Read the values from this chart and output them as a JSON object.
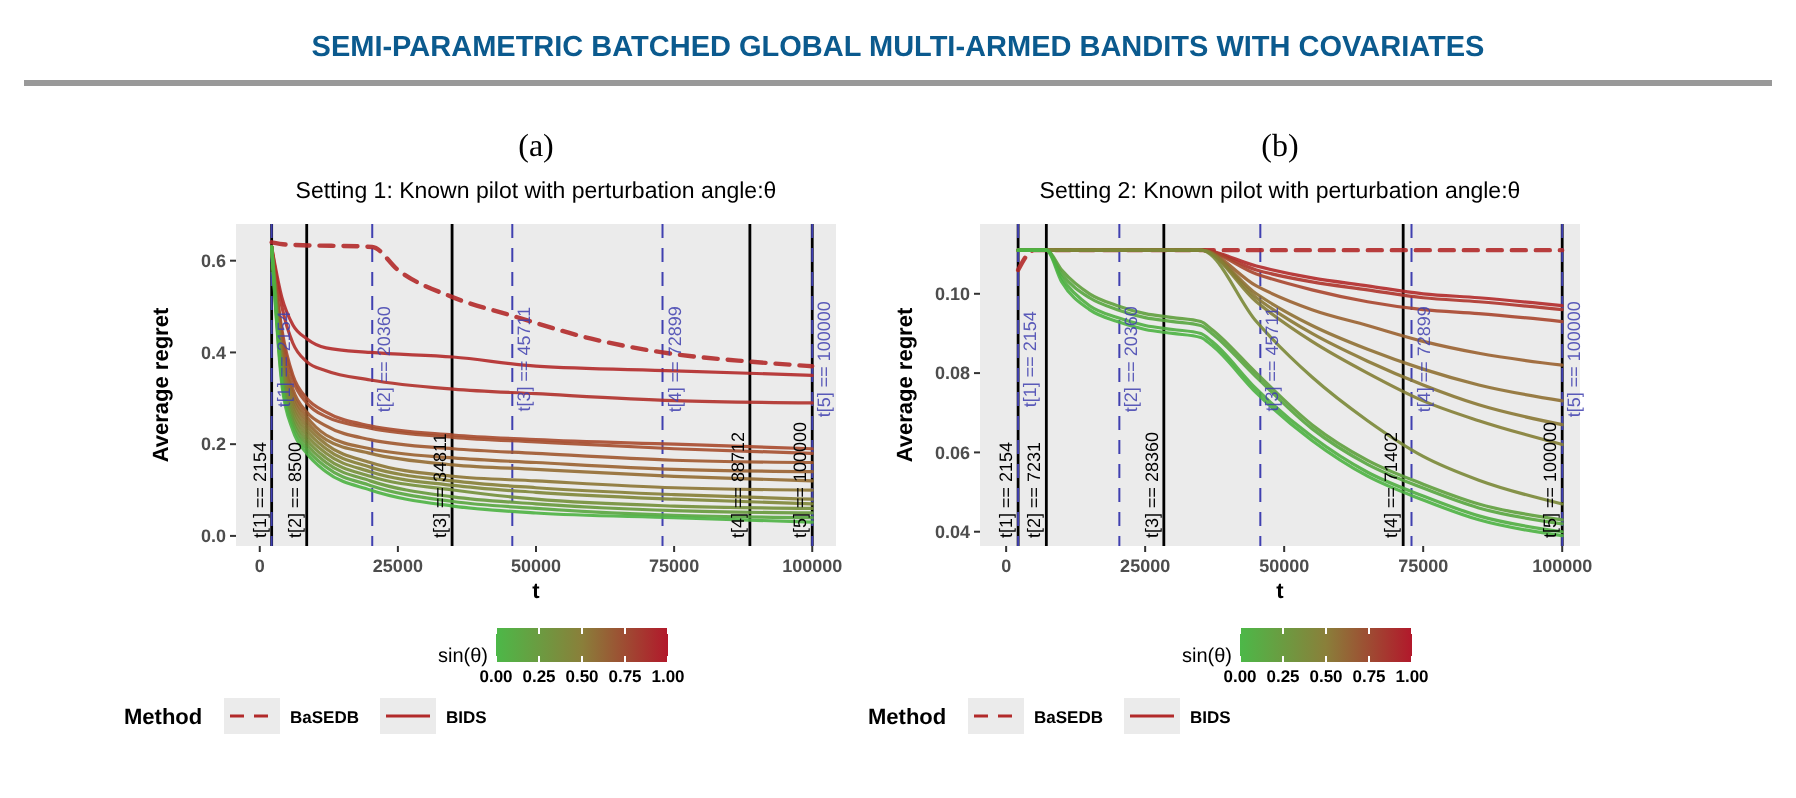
{
  "chart_data": [
    {
      "type": "line",
      "title": "Setting 1: Known pilot with perturbation angle:θ",
      "xlabel": "t",
      "ylabel": "Average regret",
      "legend_title": "Method",
      "clabel": "sin(θ)",
      "clim": [
        0,
        1
      ],
      "cticks": [
        {
          "value": 0,
          "label": "0.00"
        },
        {
          "value": 0.25,
          "label": "0.25"
        },
        {
          "value": 0.5,
          "label": "0.50"
        },
        {
          "value": 0.75,
          "label": "0.75"
        },
        {
          "value": 1,
          "label": "1.00"
        }
      ],
      "legend": "bottom",
      "grid": false,
      "annotations": [
        "SEMI-PARAMETRIC BATCHED GLOBAL MULTI-ARMED BANDITS WITH COVARIATES",
        "(a)"
      ],
      "xlim": [
        -4300,
        104300
      ],
      "ylim": [
        -0.022,
        0.68
      ],
      "xticks": [
        0,
        25000,
        50000,
        75000,
        100000
      ],
      "yticks": [
        {
          "value": 0,
          "label": "0.0"
        },
        {
          "value": 0.2,
          "label": "0.2"
        },
        {
          "value": 0.4,
          "label": "0.4"
        },
        {
          "value": 0.6,
          "label": "0.6"
        }
      ],
      "ref_lines": [
        {
          "axis": "x",
          "value": 2154,
          "label": "t[1] == 2154",
          "color": "#000000",
          "line_style": "solid"
        },
        {
          "axis": "x",
          "value": 8500,
          "label": "t[2] == 8500",
          "color": "#000000",
          "line_style": "solid"
        },
        {
          "axis": "x",
          "value": 34811,
          "label": "t[3] == 34811",
          "color": "#000000",
          "line_style": "solid"
        },
        {
          "axis": "x",
          "value": 88712,
          "label": "t[4] == 88712",
          "color": "#000000",
          "line_style": "solid"
        },
        {
          "axis": "x",
          "value": 100000,
          "label": "t[5] == 100000",
          "color": "#000000",
          "line_style": "solid"
        },
        {
          "axis": "x",
          "value": 2154,
          "label": "t[1] == 2154",
          "color": "#4040b0",
          "line_style": "dashed"
        },
        {
          "axis": "x",
          "value": 20360,
          "label": "t[2] == 20360",
          "color": "#4040b0",
          "line_style": "dashed"
        },
        {
          "axis": "x",
          "value": 45711,
          "label": "t[3] == 45711",
          "color": "#4040b0",
          "line_style": "dashed"
        },
        {
          "axis": "x",
          "value": 72899,
          "label": "t[4] == 72899",
          "color": "#4040b0",
          "line_style": "dashed"
        },
        {
          "axis": "x",
          "value": 100000,
          "label": "t[5] == 100000",
          "color": "#4040b0",
          "line_style": "dashed"
        }
      ],
      "series": [
        {
          "name": "BaSEDB",
          "line_style": "dashed",
          "color": "#b22a2a",
          "x": [
            2154,
            5000,
            20360,
            25000,
            35000,
            45711,
            60000,
            72899,
            88712,
            100000
          ],
          "values": [
            0.64,
            0.635,
            0.63,
            0.58,
            0.52,
            0.48,
            0.43,
            0.4,
            0.38,
            0.37
          ]
        },
        {
          "name": "BIDS",
          "line_style": "solid",
          "color": "#b22a2a",
          "x": [
            2154,
            4000,
            6000,
            8500,
            12000,
            20000,
            35000,
            50000,
            75000,
            100000
          ],
          "values": [
            0.63,
            0.52,
            0.46,
            0.43,
            0.41,
            0.4,
            0.39,
            0.37,
            0.36,
            0.35
          ]
        },
        {
          "line_style": "solid",
          "color": "#b0302a",
          "x": [
            2154,
            4000,
            6000,
            8500,
            12000,
            20000,
            35000,
            50000,
            75000,
            100000
          ],
          "values": [
            0.63,
            0.5,
            0.42,
            0.38,
            0.36,
            0.34,
            0.32,
            0.31,
            0.295,
            0.29
          ]
        },
        {
          "line_style": "solid",
          "color": "#a84a2e",
          "x": [
            2154,
            4000,
            6000,
            8500,
            12000,
            20000,
            35000,
            50000,
            75000,
            100000
          ],
          "values": [
            0.63,
            0.45,
            0.35,
            0.3,
            0.27,
            0.24,
            0.22,
            0.21,
            0.2,
            0.19
          ]
        },
        {
          "line_style": "solid",
          "color": "#a54e2e",
          "x": [
            2154,
            4000,
            6000,
            8500,
            12000,
            20000,
            35000,
            50000,
            75000,
            100000
          ],
          "values": [
            0.63,
            0.44,
            0.34,
            0.29,
            0.26,
            0.235,
            0.215,
            0.205,
            0.19,
            0.18
          ]
        },
        {
          "line_style": "solid",
          "color": "#a0582f",
          "x": [
            2154,
            4000,
            6000,
            8500,
            12000,
            20000,
            35000,
            50000,
            75000,
            100000
          ],
          "values": [
            0.63,
            0.42,
            0.32,
            0.27,
            0.24,
            0.21,
            0.19,
            0.18,
            0.165,
            0.16
          ]
        },
        {
          "line_style": "solid",
          "color": "#9a6230",
          "x": [
            2154,
            4000,
            6000,
            8500,
            12000,
            20000,
            35000,
            50000,
            75000,
            100000
          ],
          "values": [
            0.63,
            0.41,
            0.31,
            0.26,
            0.22,
            0.19,
            0.17,
            0.16,
            0.145,
            0.14
          ]
        },
        {
          "line_style": "solid",
          "color": "#946c32",
          "x": [
            2154,
            4000,
            6000,
            8500,
            12000,
            20000,
            35000,
            50000,
            75000,
            100000
          ],
          "values": [
            0.63,
            0.4,
            0.3,
            0.25,
            0.21,
            0.18,
            0.155,
            0.145,
            0.13,
            0.12
          ]
        },
        {
          "line_style": "solid",
          "color": "#8c7634",
          "x": [
            2154,
            4000,
            6000,
            8500,
            12000,
            20000,
            35000,
            50000,
            75000,
            100000
          ],
          "values": [
            0.63,
            0.39,
            0.29,
            0.24,
            0.2,
            0.16,
            0.13,
            0.12,
            0.105,
            0.1
          ]
        },
        {
          "line_style": "solid",
          "color": "#857e35",
          "x": [
            2154,
            4000,
            6000,
            8500,
            12000,
            20000,
            35000,
            50000,
            75000,
            100000
          ],
          "values": [
            0.63,
            0.38,
            0.28,
            0.23,
            0.19,
            0.15,
            0.12,
            0.105,
            0.09,
            0.08
          ]
        },
        {
          "line_style": "solid",
          "color": "#7e8637",
          "x": [
            2154,
            4000,
            6000,
            8500,
            12000,
            20000,
            35000,
            50000,
            75000,
            100000
          ],
          "values": [
            0.63,
            0.37,
            0.27,
            0.22,
            0.18,
            0.14,
            0.11,
            0.095,
            0.08,
            0.07
          ]
        },
        {
          "line_style": "solid",
          "color": "#738f38",
          "x": [
            2154,
            4000,
            6000,
            8500,
            12000,
            20000,
            35000,
            50000,
            75000,
            100000
          ],
          "values": [
            0.63,
            0.36,
            0.26,
            0.21,
            0.17,
            0.13,
            0.1,
            0.08,
            0.065,
            0.06
          ]
        },
        {
          "line_style": "solid",
          "color": "#66993b",
          "x": [
            2154,
            4000,
            6000,
            8500,
            12000,
            20000,
            35000,
            50000,
            75000,
            100000
          ],
          "values": [
            0.63,
            0.35,
            0.25,
            0.2,
            0.16,
            0.12,
            0.085,
            0.07,
            0.055,
            0.05
          ]
        },
        {
          "line_style": "solid",
          "color": "#58a63f",
          "x": [
            2154,
            4000,
            6000,
            8500,
            12000,
            20000,
            35000,
            50000,
            75000,
            100000
          ],
          "values": [
            0.63,
            0.34,
            0.24,
            0.19,
            0.15,
            0.11,
            0.075,
            0.06,
            0.045,
            0.04
          ]
        },
        {
          "line_style": "solid",
          "color": "#4cb343",
          "x": [
            2154,
            4000,
            6000,
            8500,
            12000,
            20000,
            35000,
            50000,
            75000,
            100000
          ],
          "values": [
            0.63,
            0.33,
            0.23,
            0.18,
            0.14,
            0.1,
            0.065,
            0.05,
            0.04,
            0.03
          ]
        }
      ]
    },
    {
      "type": "line",
      "title": "Setting 2: Known pilot with perturbation angle:θ",
      "xlabel": "t",
      "ylabel": "Average regret",
      "legend_title": "Method",
      "clabel": "sin(θ)",
      "clim": [
        0,
        1
      ],
      "cticks": [
        {
          "value": 0,
          "label": "0.00"
        },
        {
          "value": 0.25,
          "label": "0.25"
        },
        {
          "value": 0.5,
          "label": "0.50"
        },
        {
          "value": 0.75,
          "label": "0.75"
        },
        {
          "value": 1,
          "label": "1.00"
        }
      ],
      "legend": "bottom",
      "grid": false,
      "annotations": [
        "(b)"
      ],
      "xlim": [
        -4700,
        103200
      ],
      "ylim": [
        0.0364,
        0.1176
      ],
      "xticks": [
        0,
        25000,
        50000,
        75000,
        100000
      ],
      "yticks": [
        {
          "value": 0.04,
          "label": "0.04"
        },
        {
          "value": 0.06,
          "label": "0.06"
        },
        {
          "value": 0.08,
          "label": "0.08"
        },
        {
          "value": 0.1,
          "label": "0.10"
        }
      ],
      "ref_lines": [
        {
          "axis": "x",
          "value": 2154,
          "label": "t[1] == 2154",
          "color": "#000000",
          "line_style": "solid"
        },
        {
          "axis": "x",
          "value": 7231,
          "label": "t[2] == 7231",
          "color": "#000000",
          "line_style": "solid"
        },
        {
          "axis": "x",
          "value": 28360,
          "label": "t[3] == 28360",
          "color": "#000000",
          "line_style": "solid"
        },
        {
          "axis": "x",
          "value": 71402,
          "label": "t[4] == 71402",
          "color": "#000000",
          "line_style": "solid"
        },
        {
          "axis": "x",
          "value": 100000,
          "label": "t[5] == 100000",
          "color": "#000000",
          "line_style": "solid"
        },
        {
          "axis": "x",
          "value": 2154,
          "label": "t[1] == 2154",
          "color": "#4040b0",
          "line_style": "dashed"
        },
        {
          "axis": "x",
          "value": 20360,
          "label": "t[2] == 20360",
          "color": "#4040b0",
          "line_style": "dashed"
        },
        {
          "axis": "x",
          "value": 45711,
          "label": "t[3] == 45711",
          "color": "#4040b0",
          "line_style": "dashed"
        },
        {
          "axis": "x",
          "value": 72899,
          "label": "t[4] == 72899",
          "color": "#4040b0",
          "line_style": "dashed"
        },
        {
          "axis": "x",
          "value": 100000,
          "label": "t[5] == 100000",
          "color": "#4040b0",
          "line_style": "dashed"
        }
      ],
      "series": [
        {
          "name": "BaSEDB",
          "line_style": "dashed",
          "color": "#b22a2a",
          "x": [
            2154,
            5000,
            100000
          ],
          "values": [
            0.106,
            0.111,
            0.111
          ]
        },
        {
          "name": "BIDS",
          "line_style": "solid",
          "color": "#b22a2a",
          "x": [
            2154,
            10000,
            20000,
            35000,
            45000,
            55000,
            65000,
            75000,
            85000,
            100000
          ],
          "values": [
            0.111,
            0.111,
            0.111,
            0.111,
            0.107,
            0.104,
            0.102,
            0.1,
            0.099,
            0.097
          ]
        },
        {
          "line_style": "solid",
          "color": "#ae342b",
          "x": [
            2154,
            10000,
            20000,
            35000,
            45000,
            55000,
            65000,
            75000,
            85000,
            100000
          ],
          "values": [
            0.111,
            0.111,
            0.111,
            0.111,
            0.106,
            0.103,
            0.101,
            0.099,
            0.098,
            0.096
          ]
        },
        {
          "line_style": "solid",
          "color": "#a8462d",
          "x": [
            2154,
            10000,
            20000,
            35000,
            45000,
            55000,
            65000,
            75000,
            85000,
            100000
          ],
          "values": [
            0.111,
            0.111,
            0.111,
            0.111,
            0.105,
            0.101,
            0.098,
            0.096,
            0.095,
            0.093
          ]
        },
        {
          "line_style": "solid",
          "color": "#9a6230",
          "x": [
            2154,
            10000,
            20000,
            35000,
            45000,
            55000,
            65000,
            75000,
            85000,
            100000
          ],
          "values": [
            0.111,
            0.111,
            0.111,
            0.111,
            0.102,
            0.096,
            0.092,
            0.088,
            0.085,
            0.082
          ]
        },
        {
          "line_style": "solid",
          "color": "#8f7033",
          "x": [
            2154,
            10000,
            20000,
            35000,
            45000,
            55000,
            65000,
            75000,
            85000,
            100000
          ],
          "values": [
            0.111,
            0.111,
            0.111,
            0.111,
            0.1,
            0.092,
            0.086,
            0.081,
            0.077,
            0.073
          ]
        },
        {
          "line_style": "solid",
          "color": "#8a7834",
          "x": [
            2154,
            10000,
            20000,
            35000,
            45000,
            55000,
            65000,
            75000,
            85000,
            100000
          ],
          "values": [
            0.111,
            0.111,
            0.111,
            0.111,
            0.099,
            0.09,
            0.083,
            0.077,
            0.072,
            0.067
          ]
        },
        {
          "line_style": "solid",
          "color": "#847e35",
          "x": [
            2154,
            10000,
            20000,
            35000,
            45000,
            55000,
            65000,
            75000,
            85000,
            100000
          ],
          "values": [
            0.111,
            0.111,
            0.111,
            0.111,
            0.098,
            0.088,
            0.08,
            0.073,
            0.068,
            0.062
          ]
        },
        {
          "line_style": "solid",
          "color": "#7a8837",
          "x": [
            2154,
            10000,
            20000,
            35000,
            45000,
            55000,
            65000,
            75000,
            85000,
            100000
          ],
          "values": [
            0.111,
            0.111,
            0.111,
            0.111,
            0.093,
            0.079,
            0.068,
            0.059,
            0.053,
            0.047
          ]
        },
        {
          "line_style": "solid",
          "color": "#5fa03d",
          "x": [
            2154,
            7231,
            10000,
            15000,
            20000,
            25000,
            30000,
            35000,
            37000,
            45000,
            55000,
            65000,
            75000,
            85000,
            100000
          ],
          "values": [
            0.111,
            0.111,
            0.106,
            0.1,
            0.097,
            0.095,
            0.094,
            0.093,
            0.091,
            0.08,
            0.067,
            0.058,
            0.052,
            0.047,
            0.043
          ]
        },
        {
          "line_style": "solid",
          "color": "#58a63f",
          "x": [
            2154,
            7231,
            10000,
            15000,
            20000,
            25000,
            30000,
            35000,
            37000,
            45000,
            55000,
            65000,
            75000,
            85000,
            100000
          ],
          "values": [
            0.111,
            0.111,
            0.105,
            0.099,
            0.096,
            0.094,
            0.093,
            0.092,
            0.09,
            0.079,
            0.066,
            0.057,
            0.051,
            0.046,
            0.042
          ]
        },
        {
          "line_style": "solid",
          "color": "#50ae41",
          "x": [
            2154,
            7231,
            10000,
            15000,
            20000,
            25000,
            30000,
            35000,
            37000,
            45000,
            55000,
            65000,
            75000,
            85000,
            100000
          ],
          "values": [
            0.111,
            0.111,
            0.104,
            0.097,
            0.094,
            0.092,
            0.091,
            0.09,
            0.088,
            0.076,
            0.064,
            0.055,
            0.049,
            0.044,
            0.04
          ]
        },
        {
          "line_style": "solid",
          "color": "#4cb343",
          "x": [
            2154,
            7231,
            10000,
            15000,
            20000,
            25000,
            30000,
            35000,
            37000,
            45000,
            55000,
            65000,
            75000,
            85000,
            100000
          ],
          "values": [
            0.111,
            0.111,
            0.103,
            0.096,
            0.093,
            0.091,
            0.09,
            0.089,
            0.087,
            0.075,
            0.063,
            0.054,
            0.048,
            0.043,
            0.039
          ]
        }
      ]
    }
  ]
}
